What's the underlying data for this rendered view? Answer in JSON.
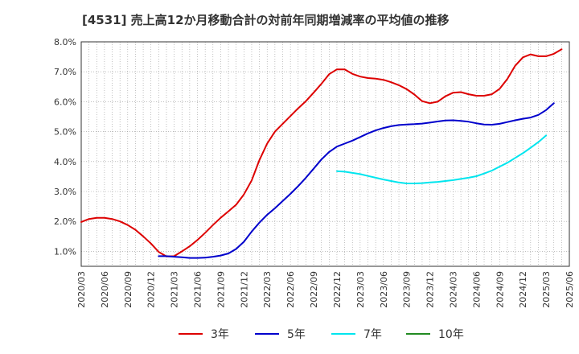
{
  "chart_data": {
    "type": "line",
    "title": "[4531]  売上高12か月移動合計の対前年同期増減率の平均値の推移",
    "y_ticks": [
      "1.0%",
      "2.0%",
      "3.0%",
      "4.0%",
      "5.0%",
      "6.0%",
      "7.0%",
      "8.0%"
    ],
    "ylim": [
      0.5,
      8.0
    ],
    "x_ticks": [
      "2020/03",
      "2020/06",
      "2020/09",
      "2020/12",
      "2021/03",
      "2021/06",
      "2021/09",
      "2021/12",
      "2022/03",
      "2022/06",
      "2022/09",
      "2022/12",
      "2023/03",
      "2023/06",
      "2023/09",
      "2023/12",
      "2024/03",
      "2024/06",
      "2024/09",
      "2024/12",
      "2025/03",
      "2025/06"
    ],
    "grid": true,
    "legend_position": "bottom",
    "series": [
      {
        "name": "3年",
        "color": "#dd0000",
        "start": "2020/03",
        "values": [
          1.98,
          2.08,
          2.12,
          2.12,
          2.08,
          2.0,
          1.88,
          1.72,
          1.5,
          1.26,
          0.98,
          0.83,
          0.84,
          1.0,
          1.17,
          1.38,
          1.62,
          1.88,
          2.12,
          2.34,
          2.56,
          2.9,
          3.37,
          4.05,
          4.6,
          5.0,
          5.26,
          5.52,
          5.78,
          6.02,
          6.3,
          6.6,
          6.92,
          7.08,
          7.08,
          6.93,
          6.84,
          6.79,
          6.77,
          6.73,
          6.65,
          6.55,
          6.42,
          6.24,
          6.02,
          5.95,
          6.0,
          6.18,
          6.3,
          6.32,
          6.25,
          6.2,
          6.2,
          6.25,
          6.43,
          6.76,
          7.2,
          7.48,
          7.58,
          7.52,
          7.52,
          7.6,
          7.75
        ]
      },
      {
        "name": "5年",
        "color": "#0000cc",
        "start": "2021/01",
        "values": [
          0.84,
          0.84,
          0.82,
          0.8,
          0.78,
          0.78,
          0.79,
          0.82,
          0.86,
          0.93,
          1.08,
          1.32,
          1.66,
          1.96,
          2.22,
          2.44,
          2.68,
          2.92,
          3.18,
          3.46,
          3.76,
          4.07,
          4.32,
          4.5,
          4.6,
          4.7,
          4.82,
          4.94,
          5.04,
          5.12,
          5.18,
          5.22,
          5.24,
          5.25,
          5.27,
          5.3,
          5.34,
          5.37,
          5.38,
          5.36,
          5.33,
          5.28,
          5.24,
          5.23,
          5.26,
          5.32,
          5.38,
          5.43,
          5.47,
          5.56,
          5.72,
          5.95
        ]
      },
      {
        "name": "7年",
        "color": "#00e5ee",
        "start": "2022/12",
        "values": [
          3.68,
          3.66,
          3.62,
          3.58,
          3.52,
          3.46,
          3.4,
          3.35,
          3.3,
          3.27,
          3.27,
          3.28,
          3.3,
          3.32,
          3.35,
          3.38,
          3.42,
          3.46,
          3.51,
          3.6,
          3.7,
          3.83,
          3.96,
          4.12,
          4.28,
          4.46,
          4.65,
          4.87
        ]
      },
      {
        "name": "10年",
        "color": "#228b22",
        "start": "2025/03",
        "values": []
      }
    ]
  }
}
